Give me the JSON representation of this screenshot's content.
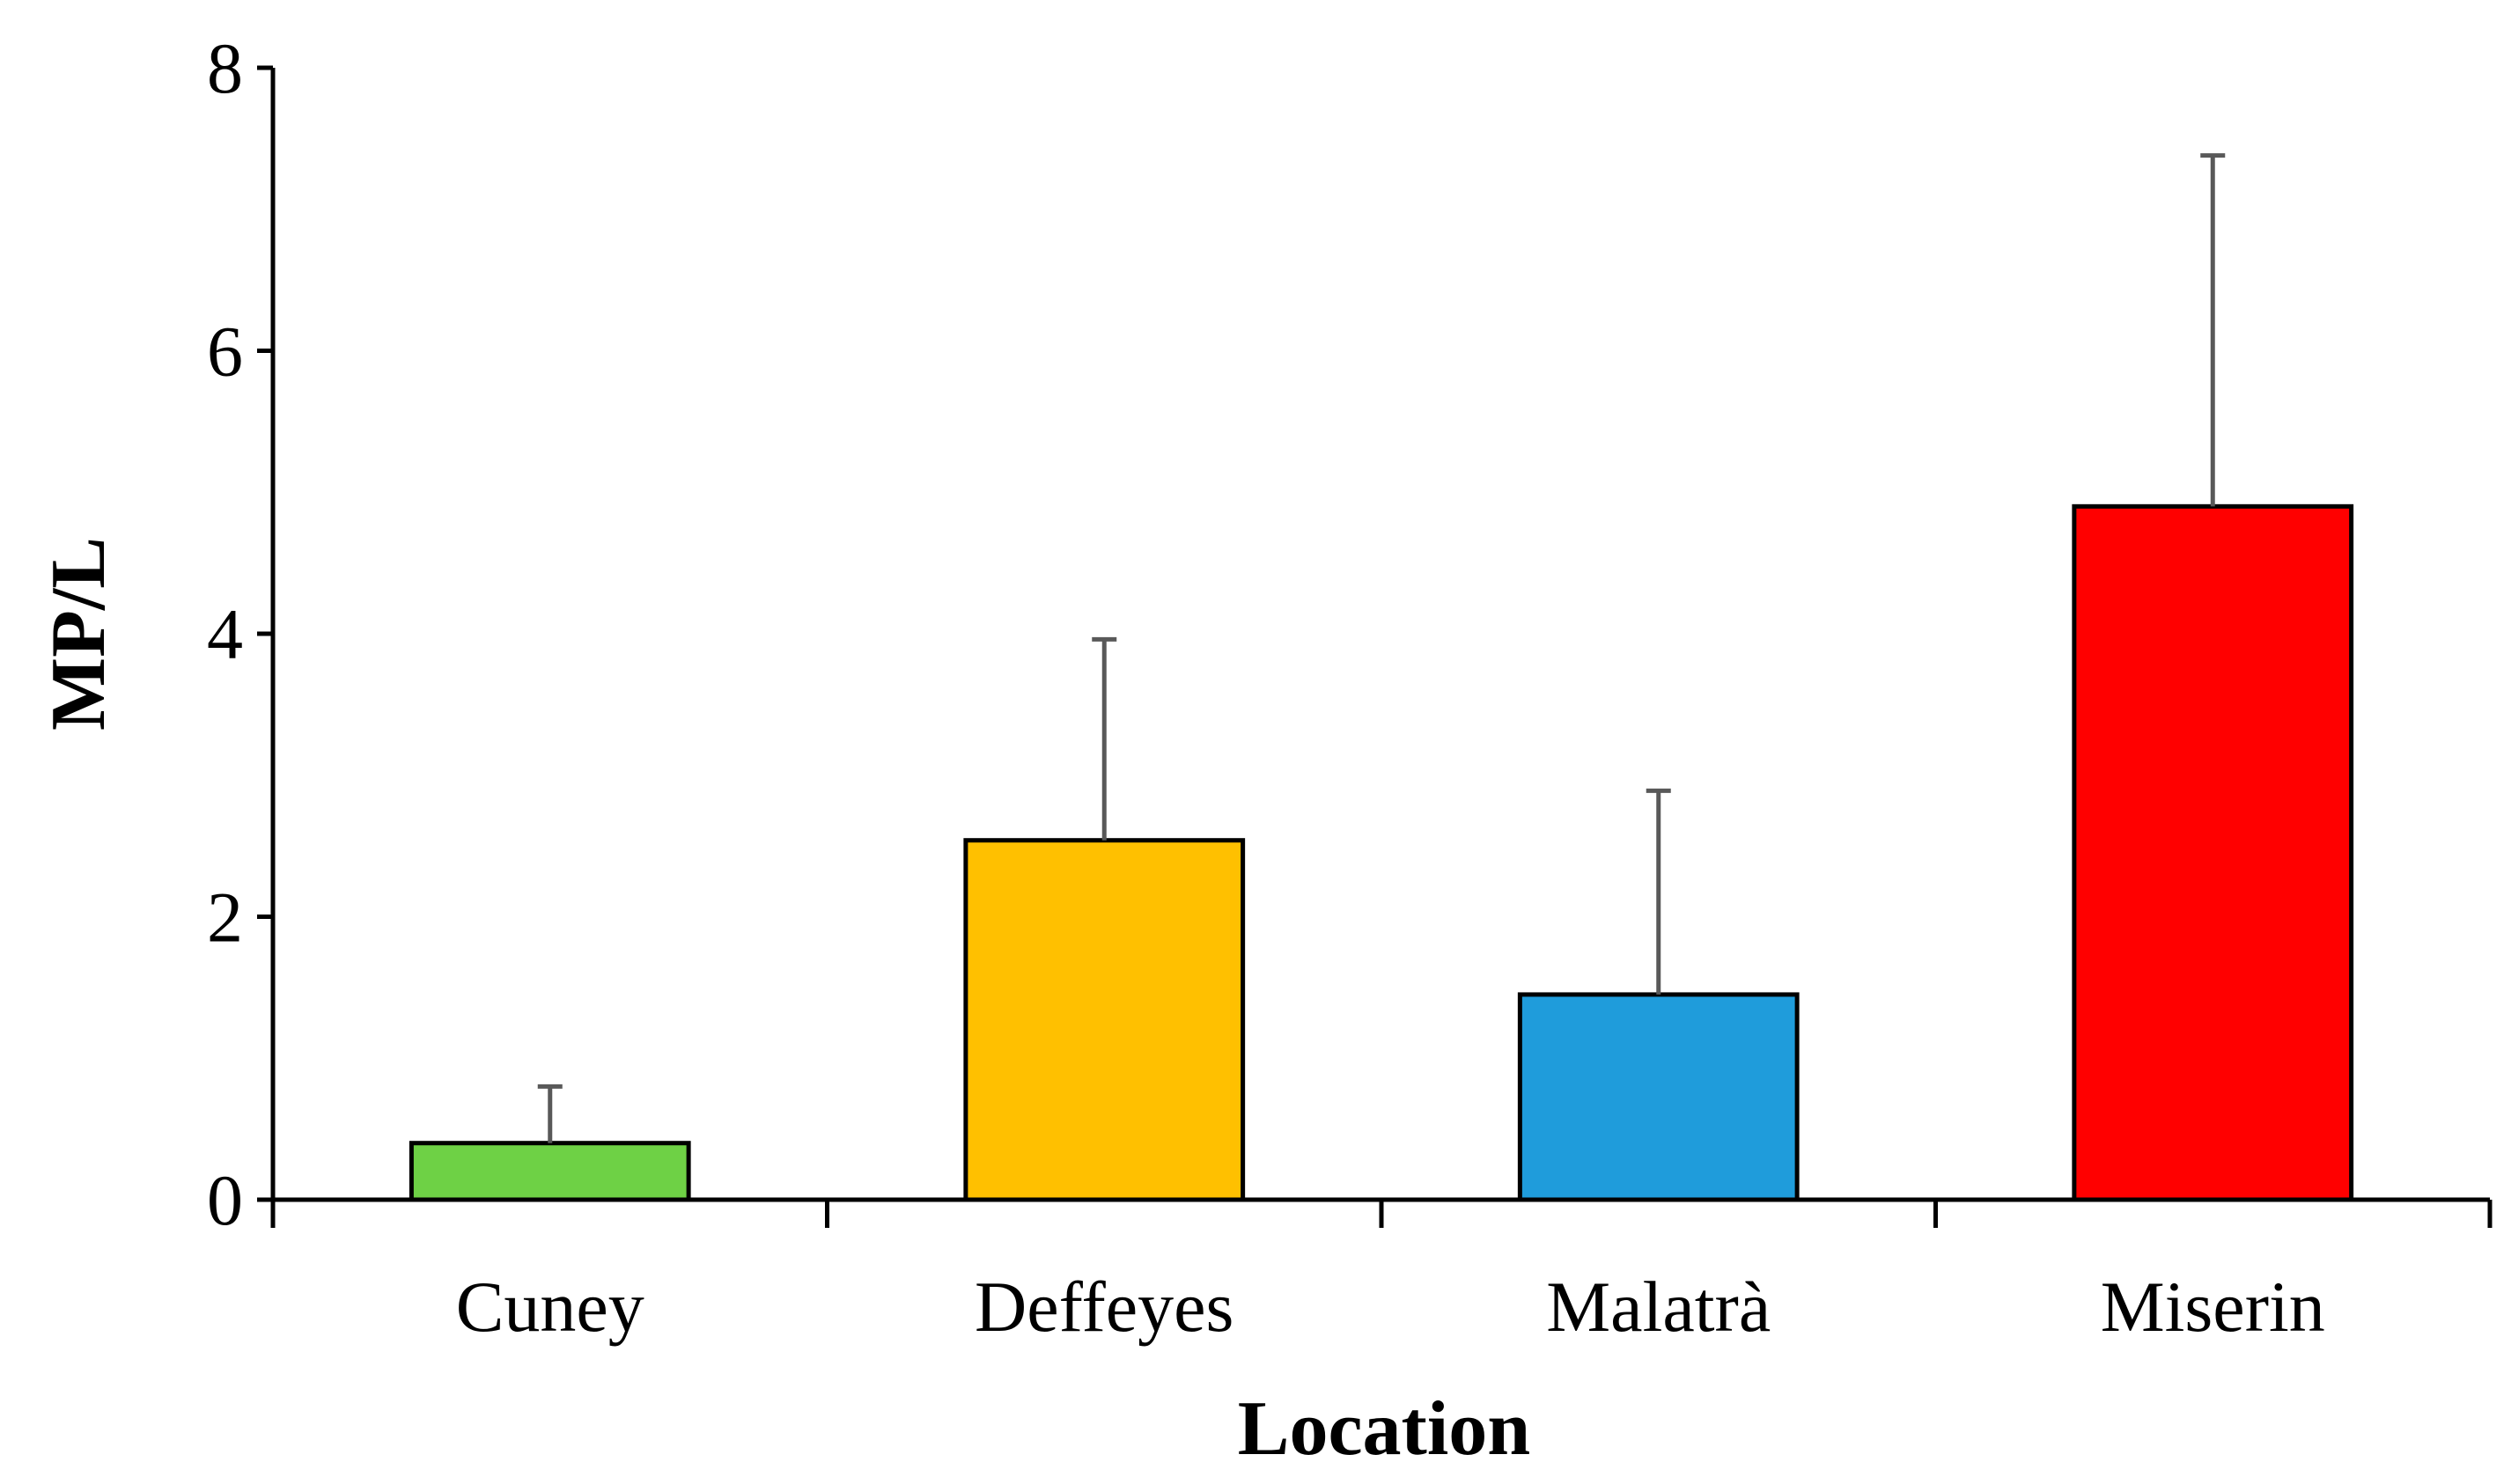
{
  "chart_data": {
    "type": "bar",
    "title": "",
    "xlabel": "Location",
    "ylabel": "MP/L",
    "categories": [
      "Cuney",
      "Deffeyes",
      "Malatrà",
      "Miserin"
    ],
    "values": [
      0.4,
      2.54,
      1.45,
      4.9
    ],
    "error_upper": [
      0.4,
      1.42,
      1.44,
      2.48
    ],
    "ylim": [
      0,
      8
    ],
    "yticks": [
      0,
      2,
      4,
      6,
      8
    ],
    "ytick_labels": [
      "0",
      "2",
      "4",
      "6",
      "8"
    ],
    "grid": false,
    "legend": "none"
  },
  "colors": {
    "bars": [
      "#6ed145",
      "#ffc000",
      "#1f9cdb",
      "#ff0000"
    ],
    "bar_outline": "#000000",
    "error_bar": "#595959",
    "axis": "#000000"
  }
}
